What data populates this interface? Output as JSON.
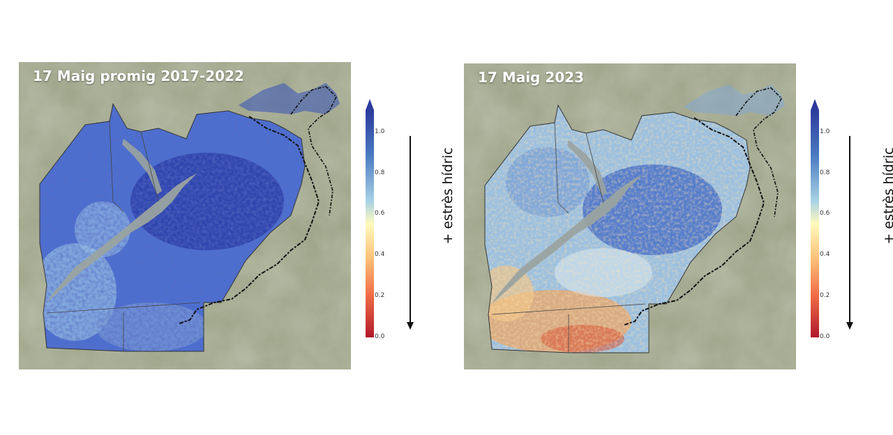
{
  "panels": [
    {
      "title": "17 Maig promig 2017-2022",
      "scenario": "average",
      "dominant_color": "#3f5fc8"
    },
    {
      "title": "17 Maig 2023",
      "scenario": "2023",
      "dominant_color": "#7aa5d8"
    }
  ],
  "colorbar": {
    "ticks": [
      "1.0",
      "0.8",
      "0.6",
      "0.4",
      "0.2",
      "0.0"
    ],
    "range": [
      0.0,
      1.0
    ],
    "colormap": "RdYlBu",
    "stress_label": "+ estrès hídric",
    "arrow_direction": "down"
  },
  "colors": {
    "low": "#b2182b",
    "mid": "#fffabc",
    "high": "#2c3b9c",
    "boundary": "#222222",
    "background_terrain": "#9fa58a"
  }
}
